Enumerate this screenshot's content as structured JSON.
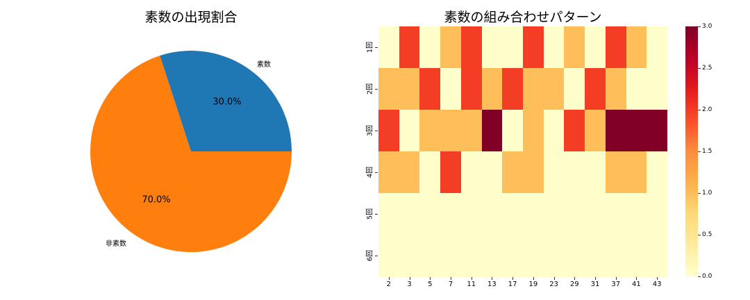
{
  "chart_data": [
    {
      "type": "pie",
      "title": "素数の出現割合",
      "labels": [
        "素数",
        "非素数"
      ],
      "values": [
        30.0,
        70.0
      ],
      "autopct_labels": [
        "30.0%",
        "70.0%"
      ],
      "colors": [
        "#1f77b4",
        "#ff7f0e"
      ],
      "startangle": 0
    },
    {
      "type": "heatmap",
      "title": "素数の組み合わせパターン",
      "x_labels": [
        "2",
        "3",
        "5",
        "7",
        "11",
        "13",
        "17",
        "19",
        "23",
        "29",
        "31",
        "37",
        "41",
        "43"
      ],
      "y_labels": [
        "1回",
        "2回",
        "3回",
        "4回",
        "5回",
        "6回"
      ],
      "values": [
        [
          0,
          2,
          0,
          1,
          2,
          0,
          0,
          2,
          0,
          1,
          0,
          2,
          1,
          0
        ],
        [
          1,
          1,
          2,
          0,
          2,
          1,
          2,
          1,
          1,
          0,
          2,
          1,
          0,
          0
        ],
        [
          2,
          0,
          1,
          1,
          1,
          3,
          0,
          1,
          0,
          2,
          1,
          3,
          3,
          3
        ],
        [
          1,
          1,
          0,
          2,
          0,
          0,
          1,
          1,
          0,
          0,
          0,
          1,
          1,
          0
        ],
        [
          0,
          0,
          0,
          0,
          0,
          0,
          0,
          0,
          0,
          0,
          0,
          0,
          0,
          0
        ],
        [
          0,
          0,
          0,
          0,
          0,
          0,
          0,
          0,
          0,
          0,
          0,
          0,
          0,
          0
        ]
      ],
      "colormap": "YlOrRd",
      "vmin": 0.0,
      "vmax": 3.0,
      "value_colors": {
        "0": "#ffffcc",
        "1": "#febf5a",
        "2": "#f43d25",
        "3": "#800026"
      },
      "colorbar_ticks": [
        "0.0",
        "0.5",
        "1.0",
        "1.5",
        "2.0",
        "2.5",
        "3.0"
      ]
    }
  ]
}
